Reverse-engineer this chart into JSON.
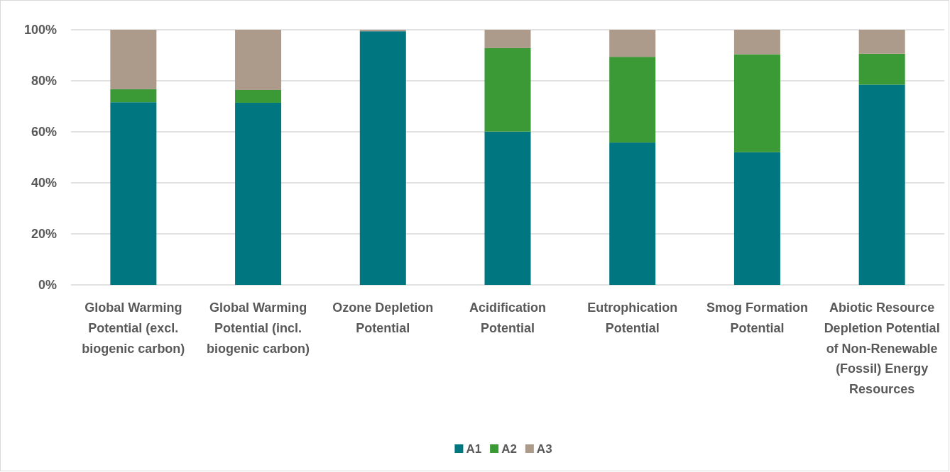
{
  "chart_data": {
    "type": "bar",
    "stacked": true,
    "categories": [
      "Global Warming Potential (excl. biogenic carbon)",
      "Global Warming Potential (incl. biogenic carbon)",
      "Ozone Depletion Potential",
      "Acidification Potential",
      "Eutrophication Potential",
      "Smog Formation Potential",
      "Abiotic Resource Depletion Potential of Non-Renewable (Fossil) Energy Resources"
    ],
    "series": [
      {
        "name": "A1",
        "color": "#007681",
        "values": [
          71.6,
          71.4,
          99.4,
          60.1,
          55.8,
          52.0,
          78.5
        ]
      },
      {
        "name": "A2",
        "color": "#3c9a36",
        "values": [
          5.1,
          5.0,
          0,
          32.7,
          33.6,
          38.4,
          12.1
        ]
      },
      {
        "name": "A3",
        "color": "#ac9b8b",
        "values": [
          23.3,
          23.6,
          0.6,
          7.2,
          10.6,
          9.6,
          9.4
        ]
      }
    ],
    "ylim": [
      0,
      100
    ],
    "yticks": [
      {
        "value": 0,
        "label": "0%"
      },
      {
        "value": 20,
        "label": "20%"
      },
      {
        "value": 40,
        "label": "40%"
      },
      {
        "value": 60,
        "label": "60%"
      },
      {
        "value": 80,
        "label": "80%"
      },
      {
        "value": 100,
        "label": "100%"
      }
    ],
    "grid": "y",
    "legend": "bottom"
  }
}
